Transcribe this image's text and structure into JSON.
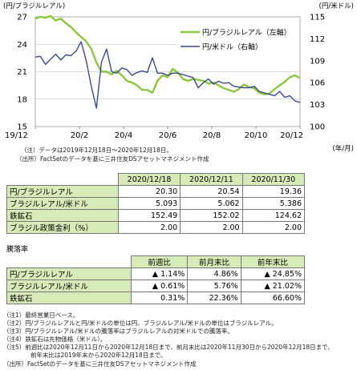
{
  "chart_data": {
    "type": "line",
    "left_axis_title": "(円/ブラジルレアル)",
    "right_axis_title": "(円/米ドル)",
    "x_unit": "(年/月)",
    "x_ticks": [
      "19/12",
      "20/2",
      "20/4",
      "20/6",
      "20/8",
      "20/10",
      "20/12"
    ],
    "ylim_left": [
      15,
      27
    ],
    "ylim_right": [
      100,
      115
    ],
    "yticks_left": [
      "27",
      "24",
      "21",
      "18",
      "15"
    ],
    "yticks_right": [
      "115",
      "112",
      "109",
      "106",
      "103",
      "100"
    ],
    "grid": true,
    "legend_position": "top-right",
    "series": [
      {
        "name": "円/ブラジルレアル（左軸）",
        "axis": "left",
        "color": "#8dc63f",
        "values": [
          26.8,
          27.0,
          26.9,
          27.1,
          26.6,
          26.8,
          26.3,
          25.9,
          25.3,
          24.8,
          24.3,
          23.5,
          22.0,
          21.0,
          21.0,
          20.7,
          21.1,
          20.6,
          20.0,
          19.8,
          19.5,
          19.0,
          19.0,
          18.7,
          20.0,
          20.6,
          20.4,
          21.3,
          20.9,
          20.2,
          20.0,
          20.2,
          20.1,
          20.0,
          19.7,
          19.8,
          19.5,
          19.2,
          19.0,
          18.8,
          19.1,
          19.6,
          19.3,
          19.2,
          18.7,
          18.5,
          18.6,
          19.1,
          19.5,
          19.9,
          20.4,
          20.6,
          20.3
        ]
      },
      {
        "name": "円/米ドル（右軸）",
        "axis": "right",
        "color": "#3b4a8c",
        "values": [
          109.5,
          109.6,
          108.5,
          109.2,
          109.9,
          109.1,
          109.8,
          109.7,
          110.3,
          111.6,
          109.0,
          105.5,
          102.5,
          108.8,
          110.6,
          107.5,
          107.3,
          108.0,
          107.8,
          107.0,
          107.4,
          107.6,
          107.4,
          109.4,
          107.3,
          107.3,
          107.0,
          107.3,
          107.3,
          107.1,
          106.9,
          106.7,
          105.3,
          106.0,
          106.5,
          105.8,
          106.2,
          105.9,
          106.0,
          105.5,
          105.4,
          105.3,
          105.3,
          105.5,
          104.8,
          104.6,
          104.4,
          104.2,
          104.8,
          104.0,
          104.2,
          103.5,
          103.3
        ]
      }
    ]
  },
  "chart_notes": [
    "（注）データは2019年12月18日～2020年12月18日。",
    "（出所）FactSetのデータを基に三井住友DSアセットマネジメント作成"
  ],
  "table1": {
    "headers": [
      "2020/12/18",
      "2020/12/11",
      "2020/11/30"
    ],
    "rows": [
      {
        "label": "円/ブラジルレアル",
        "values": [
          "20.30",
          "20.54",
          "19.36"
        ]
      },
      {
        "label": "ブラジルレアル/米ドル",
        "values": [
          "5.093",
          "5.062",
          "5.386"
        ]
      },
      {
        "label": "鉄鉱石",
        "values": [
          "152.49",
          "152.02",
          "124.62"
        ]
      },
      {
        "label": "ブラジル政策金利（%）",
        "values": [
          "2.00",
          "2.00",
          "2.00"
        ]
      }
    ]
  },
  "table2": {
    "title": "騰落率",
    "headers": [
      "前週比",
      "前月末比",
      "前年末比"
    ],
    "rows": [
      {
        "label": "円/ブラジルレアル",
        "values": [
          "▲ 1.14%",
          "4.86%",
          "▲ 24.85%"
        ]
      },
      {
        "label": "ブラジルレアル/米ドル",
        "values": [
          "▲ 0.61%",
          "5.76%",
          "▲ 21.02%"
        ]
      },
      {
        "label": "鉄鉱石",
        "values": [
          "0.31%",
          "22.36%",
          "66.60%"
        ]
      }
    ]
  },
  "footnotes": [
    "（注1）最終営業日ベース。",
    "（注2）円/ブラジルレアルと円/米ドルの単位は円、ブラジルレアル/米ドルの単位はブラジルレアル。",
    "（注3）円/ブラジルレアル/米ドルの騰落率はブラジルレアルの対米ドルでの騰落率。",
    "（注4）鉄鉱石は先物価格（米ドル）。",
    "（注5）前週比は2020年12月11日から2020年12月18日まで、前月末比は2020年11月30日から2020年12月18日まで、",
    "前年末比は2019年末から2020年12月18日まで。",
    "（出所）FactSetのデータを基に三井住友DSアセットマネジメント作成"
  ]
}
